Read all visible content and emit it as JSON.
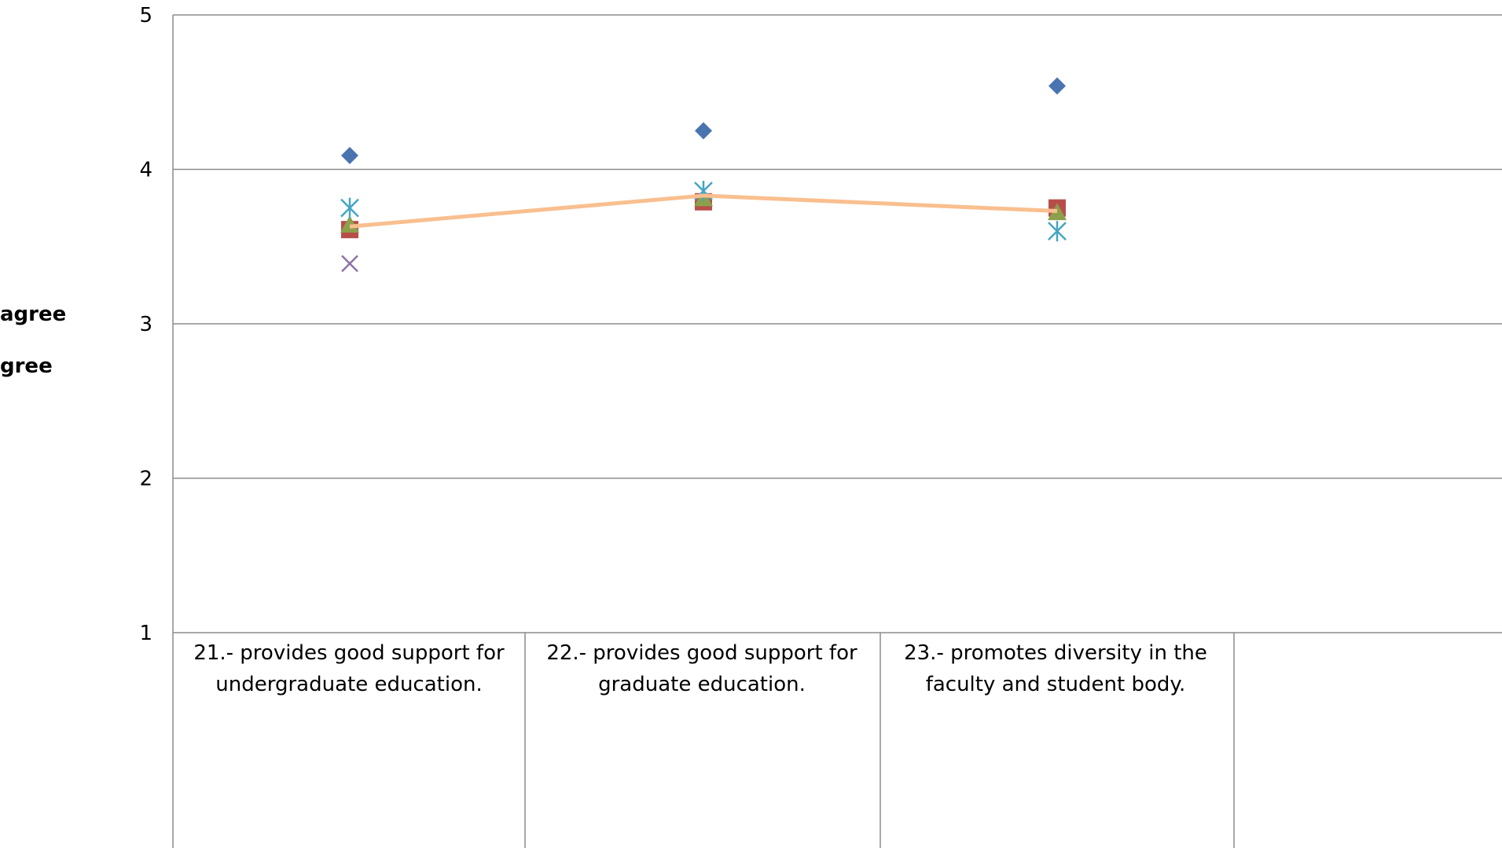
{
  "side_labels": [
    "agree",
    "gree"
  ],
  "chart_data": {
    "type": "scatter",
    "categories": [
      [
        "21.- provides good support for",
        "undergraduate education."
      ],
      [
        "22.- provides good support for",
        "graduate education."
      ],
      [
        "23.- promotes diversity in the",
        "faculty and student body."
      ]
    ],
    "yticks": [
      "1",
      "2",
      "3",
      "4",
      "5"
    ],
    "ylim": [
      1,
      5
    ],
    "grid": true,
    "series": [
      {
        "marker": "diamond",
        "color": "#4a74b0",
        "values": [
          4.09,
          4.25,
          4.54
        ]
      },
      {
        "marker": "square",
        "color": "#b84e4a",
        "values": [
          3.61,
          3.79,
          3.75
        ]
      },
      {
        "marker": "triangle",
        "color": "#8ca04c",
        "values": [
          3.64,
          3.81,
          3.72
        ]
      },
      {
        "marker": "x",
        "color": "#8b74a8",
        "values": [
          3.39,
          null,
          null
        ]
      },
      {
        "marker": "star",
        "color": "#44a6c2",
        "values": [
          3.75,
          3.86,
          3.6
        ]
      },
      {
        "marker": "line",
        "color": "#f9bf8f",
        "values": [
          3.63,
          3.83,
          3.73
        ]
      }
    ]
  }
}
